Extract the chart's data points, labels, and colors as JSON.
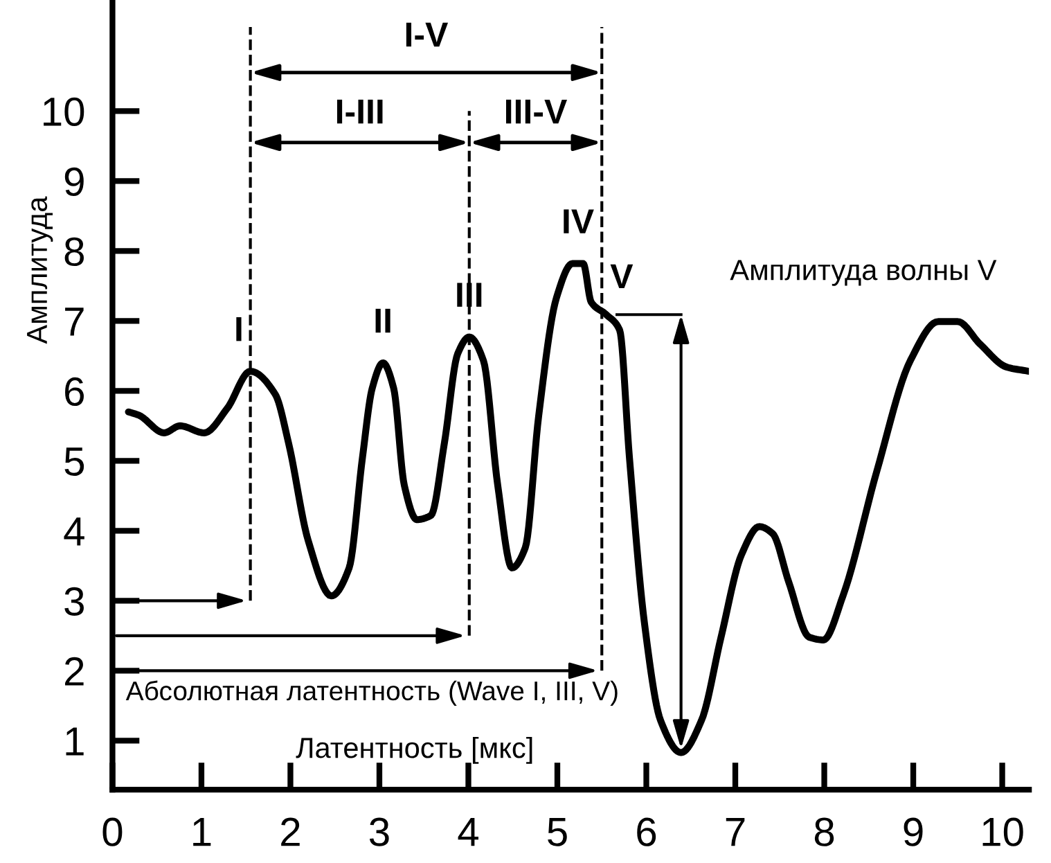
{
  "chart_data": {
    "type": "line",
    "xlabel": "Латентность [мкс]",
    "ylabel": "Амплитуда",
    "color": "#000000",
    "marker": "none",
    "line_style": "solid",
    "grid": false,
    "x": [
      0.18,
      0.3,
      0.58,
      0.76,
      1.03,
      1.29,
      1.55,
      1.83,
      1.98,
      2.2,
      2.46,
      2.66,
      2.81,
      2.92,
      3.04,
      3.16,
      3.28,
      3.42,
      3.58,
      3.73,
      3.88,
      4.01,
      4.17,
      4.33,
      4.49,
      4.64,
      4.79,
      4.99,
      5.17,
      5.29,
      5.38,
      5.55,
      5.7,
      5.81,
      5.98,
      6.16,
      6.39,
      6.62,
      6.84,
      7.07,
      7.27,
      7.42,
      7.6,
      7.83,
      7.99,
      8.21,
      8.59,
      8.97,
      9.28,
      9.5,
      9.75,
      10.05,
      10.3
    ],
    "values": [
      5.7,
      5.65,
      5.4,
      5.5,
      5.4,
      5.75,
      6.28,
      5.95,
      5.25,
      3.86,
      3.07,
      3.47,
      5.05,
      6.04,
      6.4,
      6.04,
      4.65,
      4.16,
      4.22,
      5.25,
      6.53,
      6.77,
      6.43,
      4.65,
      3.47,
      3.76,
      5.64,
      7.33,
      7.82,
      7.82,
      7.27,
      7.09,
      6.87,
      5.05,
      2.67,
      1.29,
      0.83,
      1.29,
      2.48,
      3.66,
      4.06,
      3.96,
      3.27,
      2.48,
      2.44,
      3.07,
      4.85,
      6.44,
      6.99,
      6.99,
      6.67,
      6.34,
      6.28
    ],
    "xlim": [
      0,
      10.3
    ],
    "xticks": [
      0,
      1,
      2,
      3,
      4,
      5,
      6,
      7,
      8,
      9,
      10
    ],
    "ylim": [
      0.3,
      11.55
    ],
    "yticks": [
      1,
      2,
      3,
      4,
      5,
      6,
      7,
      8,
      9,
      10
    ],
    "ref_lines": [
      {
        "axis": "x",
        "value": 1.55,
        "color": "#000000",
        "line_style": "dashed"
      },
      {
        "axis": "x",
        "value": 4.01,
        "color": "#000000",
        "line_style": "dashed"
      },
      {
        "axis": "x",
        "value": 5.5,
        "color": "#000000",
        "line_style": "dashed"
      }
    ],
    "annotations": [
      {
        "text": "I",
        "x": 1.55,
        "y": 6.28
      },
      {
        "text": "II",
        "x": 3.04,
        "y": 6.4
      },
      {
        "text": "III",
        "x": 4.01,
        "y": 6.77
      },
      {
        "text": "IV",
        "x": 5.23,
        "y": 7.82
      },
      {
        "text": "V",
        "x": 5.55,
        "y": 7.09
      },
      "I-V",
      "I-III",
      "III-V",
      "Амплитуда волны V",
      "Абсолютная латентность (Wave I, III, V)"
    ]
  }
}
